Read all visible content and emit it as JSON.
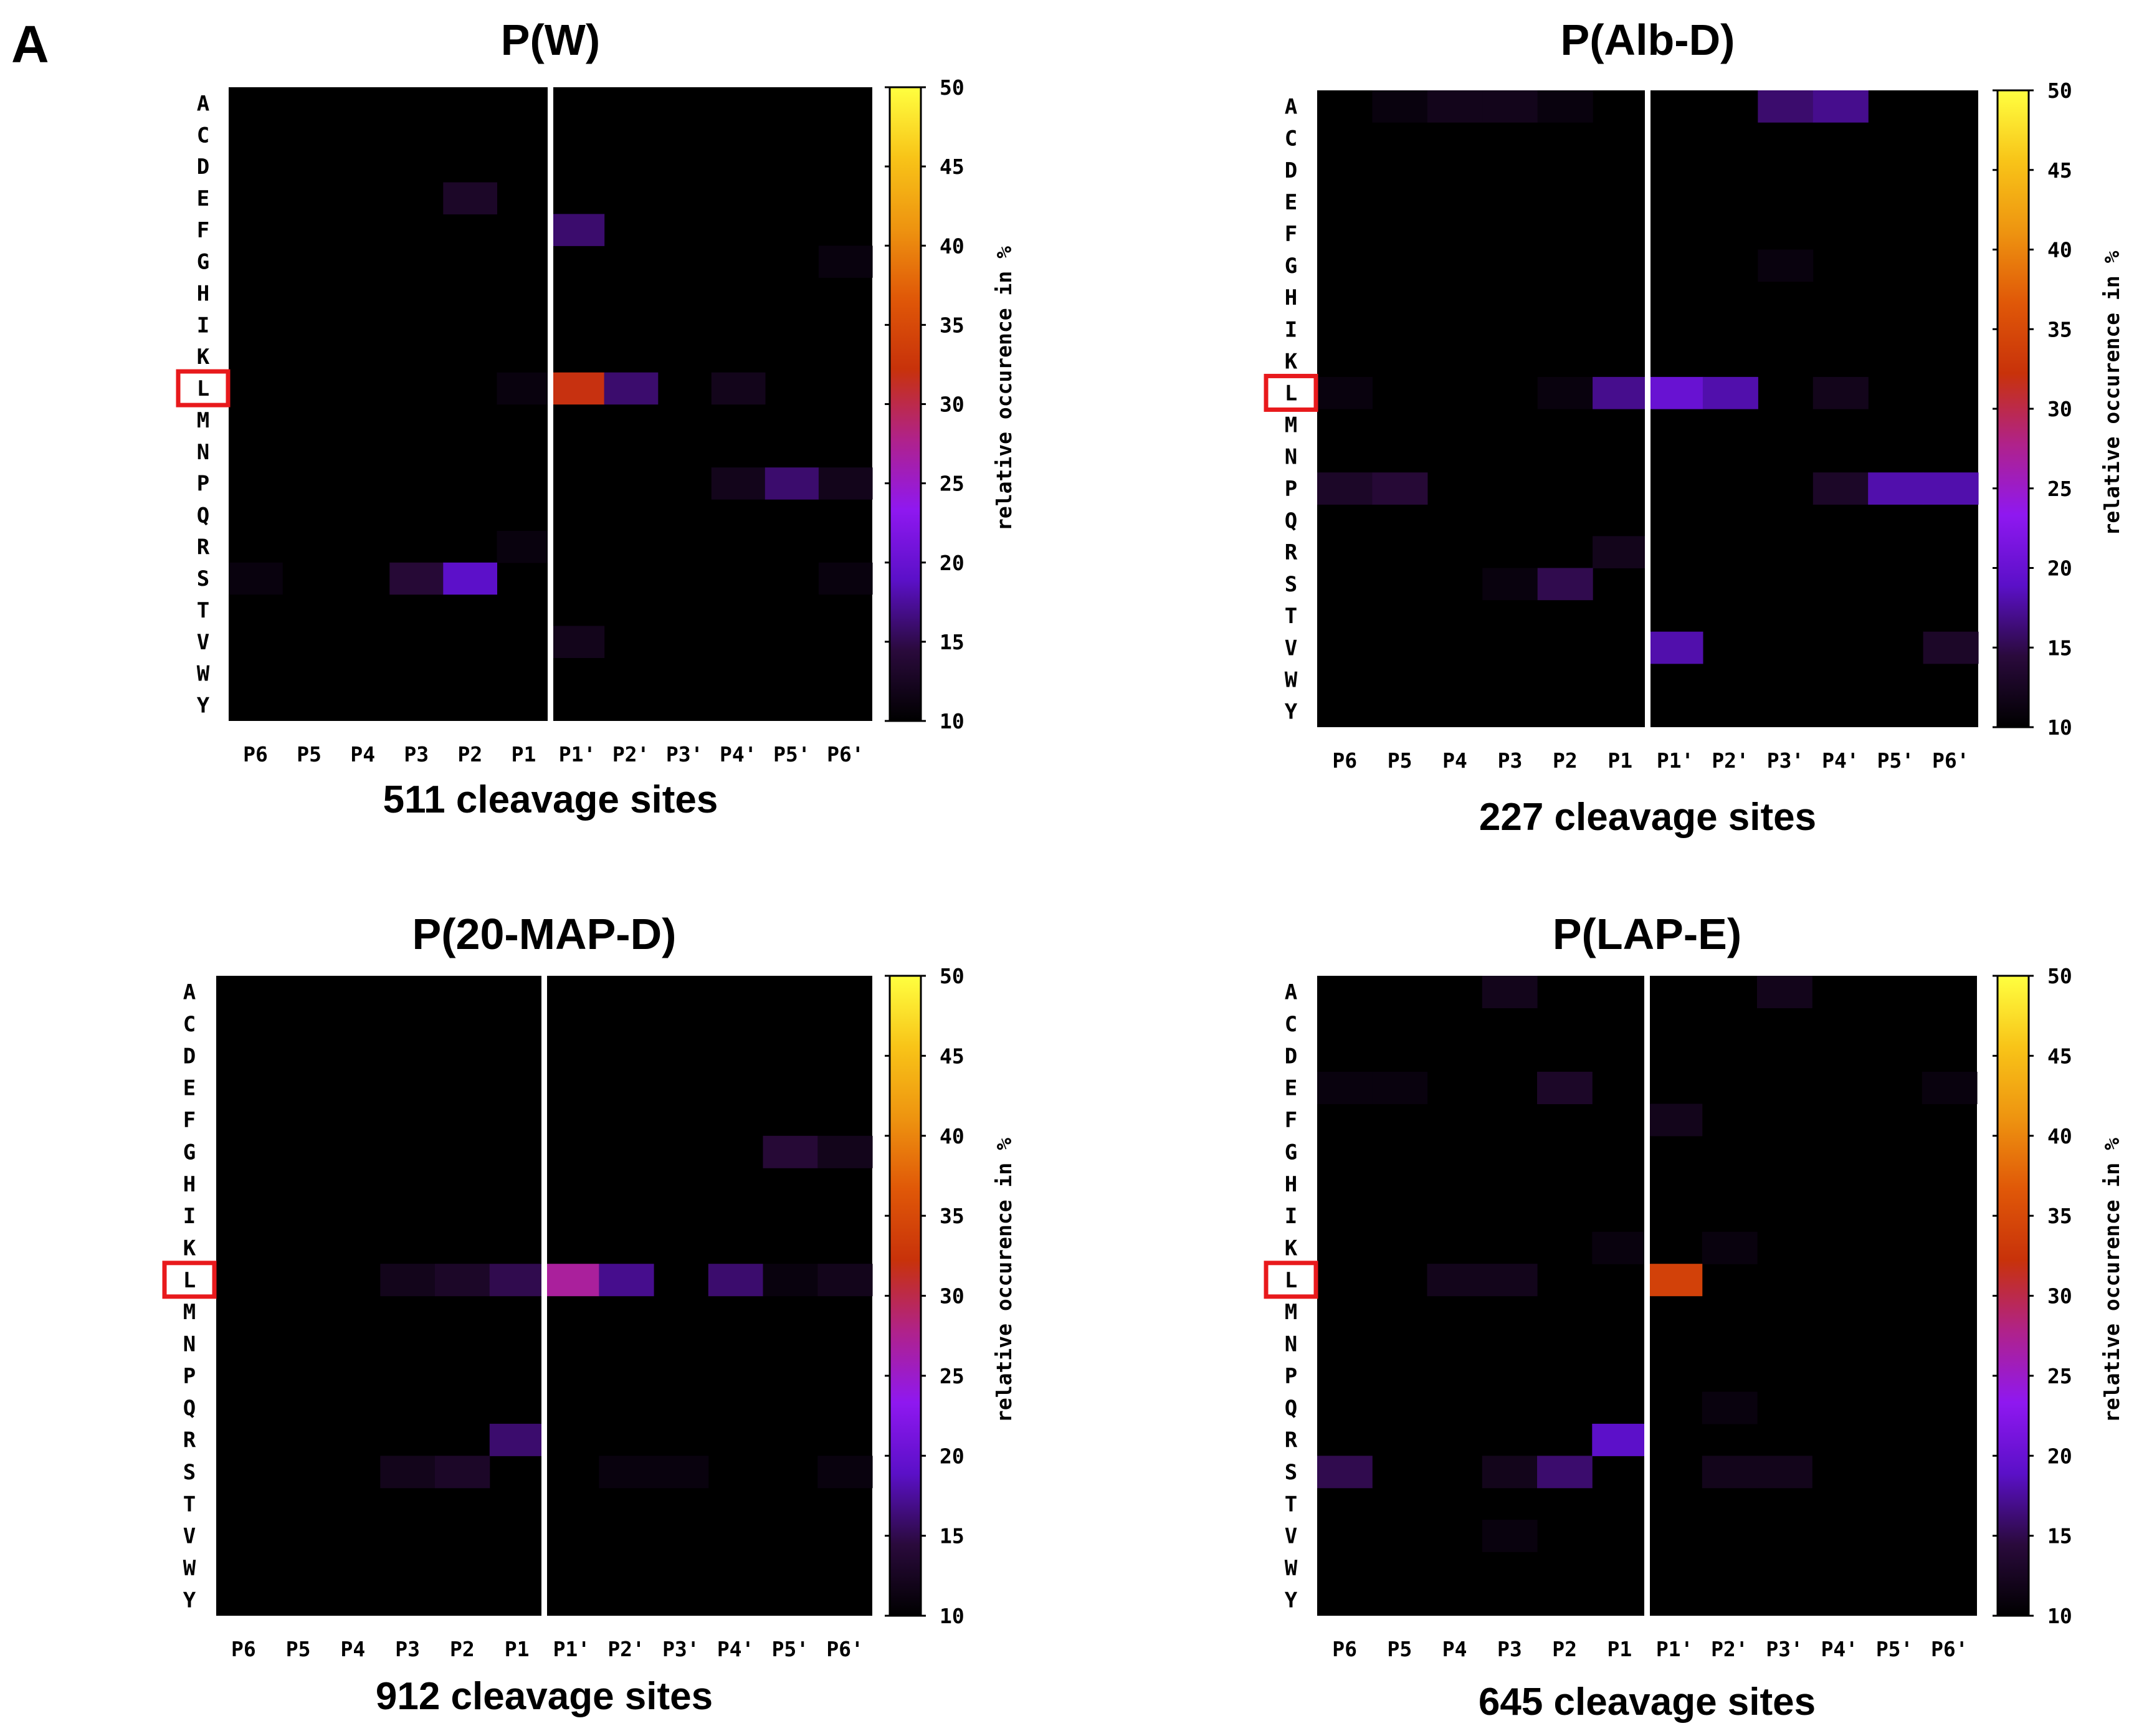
{
  "panel_label": "A",
  "colorbar": {
    "label": "relative occurence in %",
    "ticks": [
      "50",
      "45",
      "40",
      "35",
      "30",
      "25",
      "20",
      "15",
      "10"
    ],
    "range": [
      10,
      50
    ],
    "stops": [
      "#000000",
      "#2a0a3c",
      "#5b10c8",
      "#8f18f0",
      "#b0228a",
      "#c8320a",
      "#e05808",
      "#ee9410",
      "#f8c418",
      "#ffff40"
    ]
  },
  "highlight": {
    "residue": "L",
    "color": "#e8191c"
  },
  "chart_data": [
    {
      "type": "heatmap",
      "title": "P(W)",
      "caption": "511 cleavage sites",
      "rows": [
        "A",
        "C",
        "D",
        "E",
        "F",
        "G",
        "H",
        "I",
        "K",
        "L",
        "M",
        "N",
        "P",
        "Q",
        "R",
        "S",
        "T",
        "V",
        "W",
        "Y"
      ],
      "columns": [
        "P6",
        "P5",
        "P4",
        "P3",
        "P2",
        "P1",
        "P1'",
        "P2'",
        "P3'",
        "P4'",
        "P5'",
        "P6'"
      ],
      "zrange": [
        10,
        50
      ],
      "cells": [
        [
          "E",
          "P2",
          13
        ],
        [
          "F",
          "P1'",
          16
        ],
        [
          "G",
          "P6'",
          11
        ],
        [
          "L",
          "P1",
          11
        ],
        [
          "L",
          "P1'",
          32
        ],
        [
          "L",
          "P2'",
          16
        ],
        [
          "L",
          "P4'",
          12
        ],
        [
          "P",
          "P4'",
          12
        ],
        [
          "P",
          "P5'",
          16
        ],
        [
          "P",
          "P6'",
          12
        ],
        [
          "R",
          "P1",
          11
        ],
        [
          "S",
          "P6",
          11
        ],
        [
          "S",
          "P3",
          14
        ],
        [
          "S",
          "P2",
          19
        ],
        [
          "S",
          "P6'",
          11
        ],
        [
          "V",
          "P1'",
          12
        ]
      ]
    },
    {
      "type": "heatmap",
      "title": "P(Alb-D)",
      "caption": "227 cleavage sites",
      "rows": [
        "A",
        "C",
        "D",
        "E",
        "F",
        "G",
        "H",
        "I",
        "K",
        "L",
        "M",
        "N",
        "P",
        "Q",
        "R",
        "S",
        "T",
        "V",
        "W",
        "Y"
      ],
      "columns": [
        "P6",
        "P5",
        "P4",
        "P3",
        "P2",
        "P1",
        "P1'",
        "P2'",
        "P3'",
        "P4'",
        "P5'",
        "P6'"
      ],
      "zrange": [
        10,
        50
      ],
      "cells": [
        [
          "A",
          "P5",
          11
        ],
        [
          "A",
          "P4",
          12
        ],
        [
          "A",
          "P3",
          12
        ],
        [
          "A",
          "P2",
          11
        ],
        [
          "A",
          "P3'",
          16
        ],
        [
          "A",
          "P4'",
          17
        ],
        [
          "G",
          "P3'",
          11
        ],
        [
          "L",
          "P6",
          11
        ],
        [
          "L",
          "P2",
          11
        ],
        [
          "L",
          "P1",
          17
        ],
        [
          "L",
          "P1'",
          20
        ],
        [
          "L",
          "P2'",
          18
        ],
        [
          "L",
          "P4'",
          12
        ],
        [
          "P",
          "P6",
          13
        ],
        [
          "P",
          "P5",
          14
        ],
        [
          "P",
          "P4'",
          13
        ],
        [
          "P",
          "P5'",
          18
        ],
        [
          "P",
          "P6'",
          18
        ],
        [
          "R",
          "P1",
          12
        ],
        [
          "S",
          "P3",
          11
        ],
        [
          "S",
          "P2",
          15
        ],
        [
          "V",
          "P1'",
          18
        ],
        [
          "V",
          "P6'",
          13
        ]
      ]
    },
    {
      "type": "heatmap",
      "title": "P(20-MAP-D)",
      "caption": "912 cleavage sites",
      "rows": [
        "A",
        "C",
        "D",
        "E",
        "F",
        "G",
        "H",
        "I",
        "K",
        "L",
        "M",
        "N",
        "P",
        "Q",
        "R",
        "S",
        "T",
        "V",
        "W",
        "Y"
      ],
      "columns": [
        "P6",
        "P5",
        "P4",
        "P3",
        "P2",
        "P1",
        "P1'",
        "P2'",
        "P3'",
        "P4'",
        "P5'",
        "P6'"
      ],
      "zrange": [
        10,
        50
      ],
      "cells": [
        [
          "G",
          "P5'",
          14
        ],
        [
          "G",
          "P6'",
          12
        ],
        [
          "L",
          "P3",
          12
        ],
        [
          "L",
          "P2",
          13
        ],
        [
          "L",
          "P1",
          15
        ],
        [
          "L",
          "P1'",
          27
        ],
        [
          "L",
          "P2'",
          17
        ],
        [
          "L",
          "P4'",
          16
        ],
        [
          "L",
          "P5'",
          11
        ],
        [
          "L",
          "P6'",
          12
        ],
        [
          "R",
          "P1",
          16
        ],
        [
          "S",
          "P3",
          12
        ],
        [
          "S",
          "P2",
          13
        ],
        [
          "S",
          "P2'",
          11
        ],
        [
          "S",
          "P3'",
          11
        ],
        [
          "S",
          "P6'",
          11
        ]
      ]
    },
    {
      "type": "heatmap",
      "title": "P(LAP-E)",
      "caption": "645 cleavage sites",
      "rows": [
        "A",
        "C",
        "D",
        "E",
        "F",
        "G",
        "H",
        "I",
        "K",
        "L",
        "M",
        "N",
        "P",
        "Q",
        "R",
        "S",
        "T",
        "V",
        "W",
        "Y"
      ],
      "columns": [
        "P6",
        "P5",
        "P4",
        "P3",
        "P2",
        "P1",
        "P1'",
        "P2'",
        "P3'",
        "P4'",
        "P5'",
        "P6'"
      ],
      "zrange": [
        10,
        50
      ],
      "cells": [
        [
          "A",
          "P3",
          12
        ],
        [
          "A",
          "P3'",
          12
        ],
        [
          "E",
          "P6",
          11
        ],
        [
          "E",
          "P5",
          11
        ],
        [
          "E",
          "P2",
          13
        ],
        [
          "E",
          "P6'",
          11
        ],
        [
          "F",
          "P1'",
          12
        ],
        [
          "K",
          "P1",
          11
        ],
        [
          "K",
          "P2'",
          11
        ],
        [
          "L",
          "P4",
          12
        ],
        [
          "L",
          "P3",
          12
        ],
        [
          "L",
          "P1'",
          34
        ],
        [
          "Q",
          "P2'",
          11
        ],
        [
          "R",
          "P1",
          19
        ],
        [
          "S",
          "P6",
          15
        ],
        [
          "S",
          "P3",
          12
        ],
        [
          "S",
          "P2",
          16
        ],
        [
          "S",
          "P2'",
          12
        ],
        [
          "S",
          "P3'",
          12
        ],
        [
          "V",
          "P3",
          11
        ]
      ]
    }
  ]
}
